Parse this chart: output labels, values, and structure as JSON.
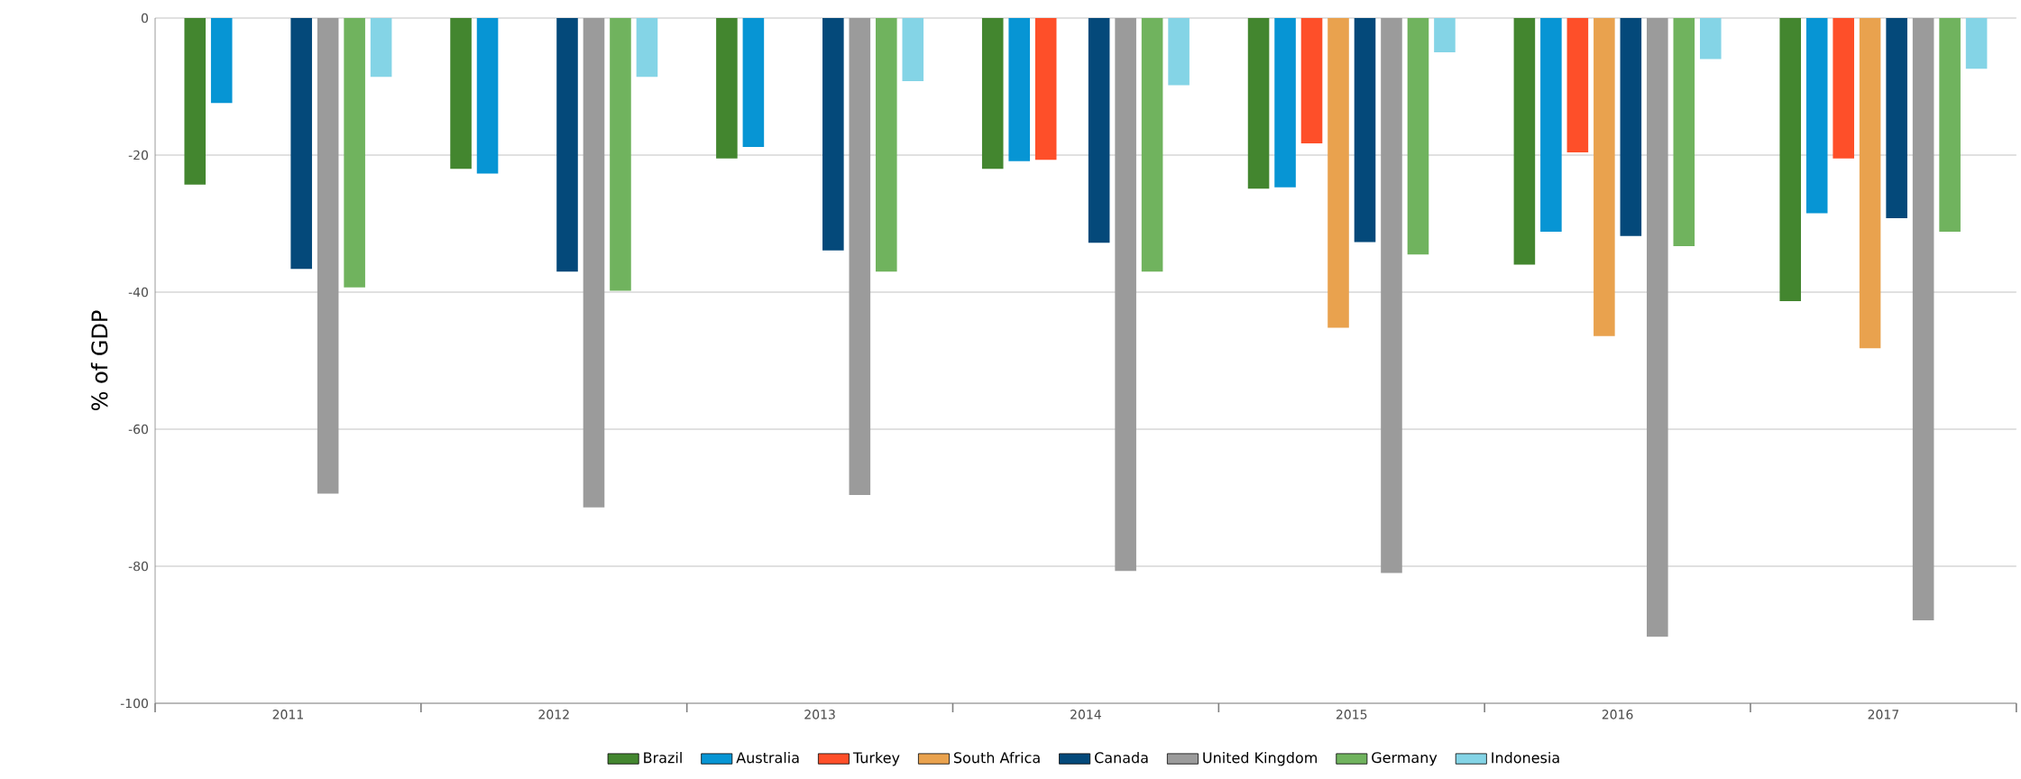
{
  "chart_data": {
    "type": "bar",
    "ylabel": "% of GDP",
    "categories": [
      "2011",
      "2012",
      "2013",
      "2014",
      "2015",
      "2016",
      "2017"
    ],
    "series": [
      {
        "name": "Brazil",
        "color": "#43862f",
        "values": [
          -24.3,
          -22.0,
          -20.5,
          -22.0,
          -24.9,
          -36.0,
          -41.3
        ]
      },
      {
        "name": "Australia",
        "color": "#0795d4",
        "values": [
          -12.4,
          -22.7,
          -18.8,
          -20.9,
          -24.7,
          -31.2,
          -28.5
        ]
      },
      {
        "name": "Turkey",
        "color": "#fe4f29",
        "values": [
          null,
          null,
          null,
          -20.7,
          -18.3,
          -19.6,
          -20.5
        ]
      },
      {
        "name": "South Africa",
        "color": "#e9a24e",
        "values": [
          null,
          null,
          null,
          null,
          -45.2,
          -46.4,
          -48.2
        ]
      },
      {
        "name": "Canada",
        "color": "#04497a",
        "values": [
          -36.6,
          -37.0,
          -33.9,
          -32.8,
          -32.7,
          -31.8,
          -29.2
        ]
      },
      {
        "name": "United Kingdom",
        "color": "#9b9b9b",
        "values": [
          -69.4,
          -71.4,
          -69.6,
          -80.7,
          -81.0,
          -90.3,
          -87.9
        ]
      },
      {
        "name": "Germany",
        "color": "#70b35e",
        "values": [
          -39.3,
          -39.8,
          -37.0,
          -37.0,
          -34.5,
          -33.3,
          -31.2
        ]
      },
      {
        "name": "Indonesia",
        "color": "#84d4e6",
        "values": [
          -8.6,
          -8.6,
          -9.2,
          -9.8,
          -5.0,
          -6.0,
          -7.4
        ]
      }
    ],
    "ylim": [
      -100,
      0
    ],
    "yticks": [
      -100,
      -80,
      -60,
      -40,
      -20,
      0
    ],
    "grid": "y",
    "legend": "bottom"
  }
}
